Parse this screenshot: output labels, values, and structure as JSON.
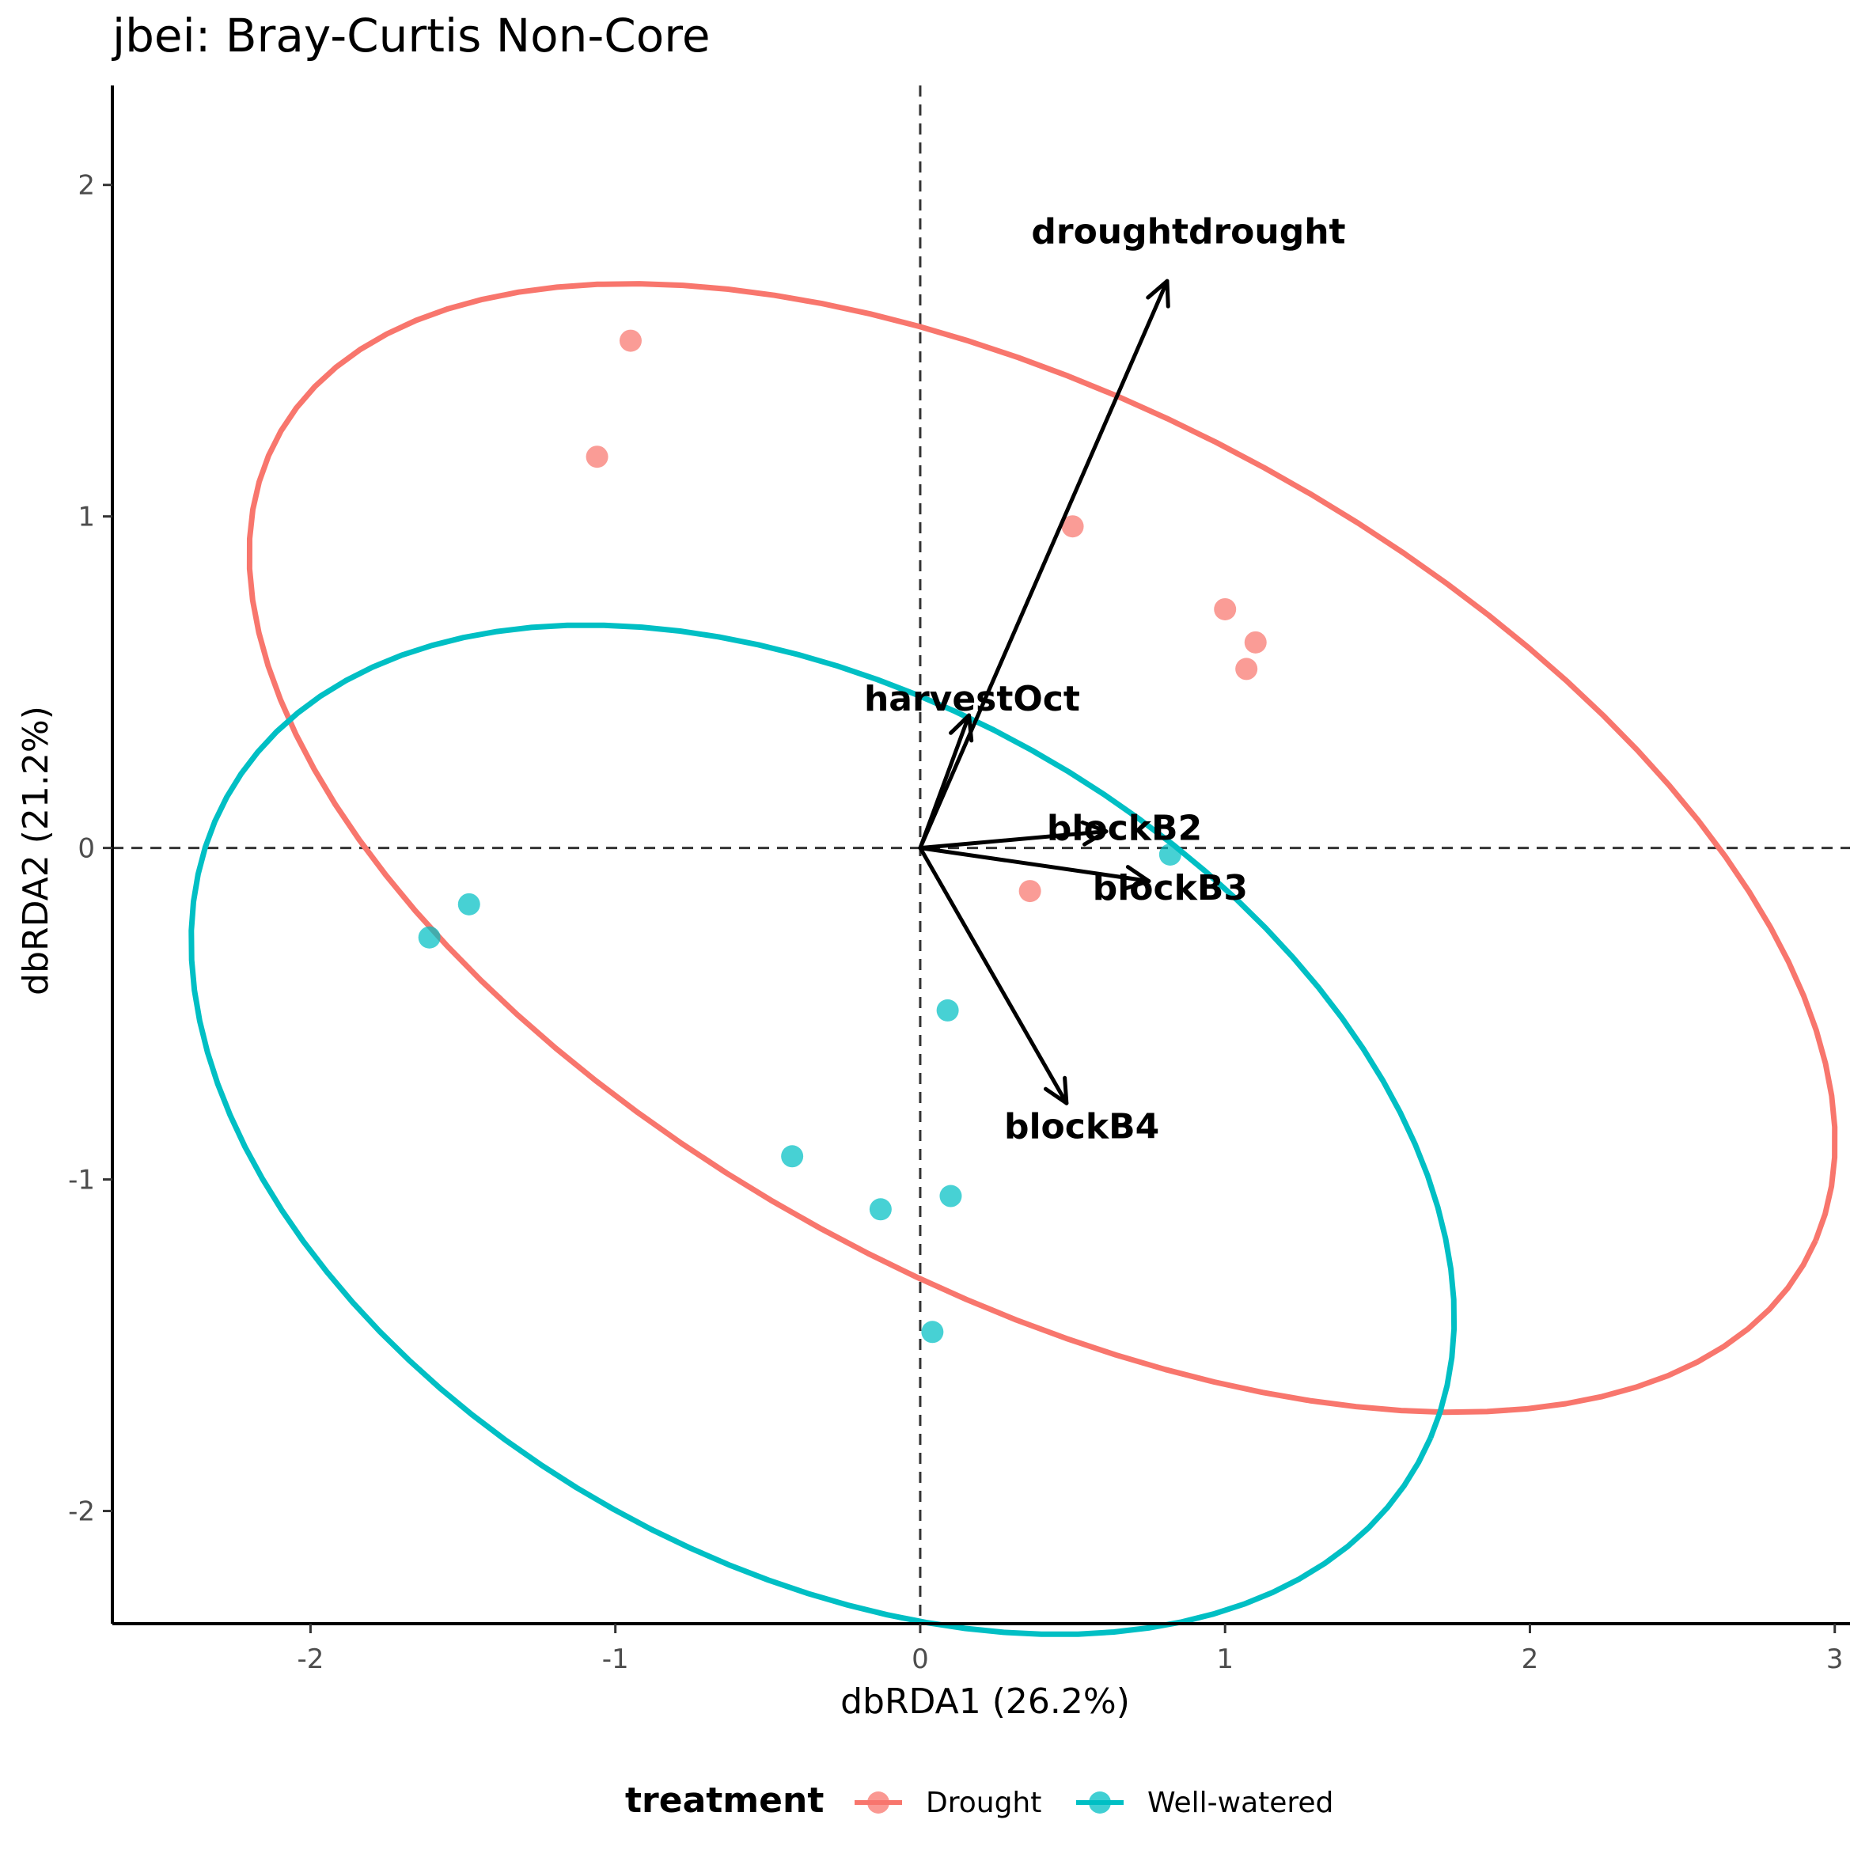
{
  "chart_data": {
    "type": "scatter",
    "title": "jbei: Bray-Curtis Non-Core",
    "xlabel": "dbRDA1 (26.2%)",
    "ylabel": "dbRDA2 (21.2%)",
    "xlim": [
      -2.65,
      3.05
    ],
    "ylim": [
      -2.34,
      2.3
    ],
    "xticks": [
      -2,
      -1,
      0,
      1,
      2,
      3
    ],
    "yticks": [
      -2,
      -1,
      0,
      1,
      2
    ],
    "xtick_labels": [
      "-2",
      "-1",
      "0",
      "1",
      "2",
      "3"
    ],
    "ytick_labels": [
      "-2",
      "-1",
      "0",
      "1",
      "2"
    ],
    "reference_lines": {
      "x": 0,
      "y": 0,
      "style": "dashed"
    },
    "grid": false,
    "legend": {
      "title": "treatment",
      "position": "bottom"
    },
    "series": [
      {
        "name": "Drought",
        "color": "#F8766D",
        "points": [
          {
            "x": -0.95,
            "y": 1.53
          },
          {
            "x": -1.06,
            "y": 1.18
          },
          {
            "x": 0.5,
            "y": 0.97
          },
          {
            "x": 1.0,
            "y": 0.72
          },
          {
            "x": 1.1,
            "y": 0.62
          },
          {
            "x": 1.07,
            "y": 0.54
          },
          {
            "x": 0.36,
            "y": -0.13
          }
        ],
        "ellipse": {
          "center": [
            0.4,
            0.0
          ],
          "a": 2.8,
          "b": 1.35,
          "angle_deg": -25
        }
      },
      {
        "name": "Well-watered",
        "color": "#00BFC4",
        "points": [
          {
            "x": 0.82,
            "y": -0.02
          },
          {
            "x": -1.48,
            "y": -0.17
          },
          {
            "x": -1.61,
            "y": -0.27
          },
          {
            "x": 0.09,
            "y": -0.49
          },
          {
            "x": -0.42,
            "y": -0.93
          },
          {
            "x": -0.13,
            "y": -1.09
          },
          {
            "x": 0.1,
            "y": -1.05
          },
          {
            "x": 0.04,
            "y": -1.46
          }
        ],
        "ellipse": {
          "center": [
            -0.32,
            -0.85
          ],
          "a": 2.2,
          "b": 1.33,
          "angle_deg": -25
        }
      }
    ],
    "vectors": [
      {
        "label": "droughtdrought",
        "x": 0.81,
        "y": 1.71,
        "label_x": 0.88,
        "label_y": 1.86
      },
      {
        "label": "harvestOct",
        "x": 0.16,
        "y": 0.4,
        "label_x": 0.17,
        "label_y": 0.45
      },
      {
        "label": "blockB2",
        "x": 0.61,
        "y": 0.05,
        "label_x": 0.67,
        "label_y": 0.06
      },
      {
        "label": "blockB3",
        "x": 0.75,
        "y": -0.1,
        "label_x": 0.82,
        "label_y": -0.12
      },
      {
        "label": "blockB4",
        "x": 0.48,
        "y": -0.77,
        "label_x": 0.53,
        "label_y": -0.84
      }
    ]
  }
}
